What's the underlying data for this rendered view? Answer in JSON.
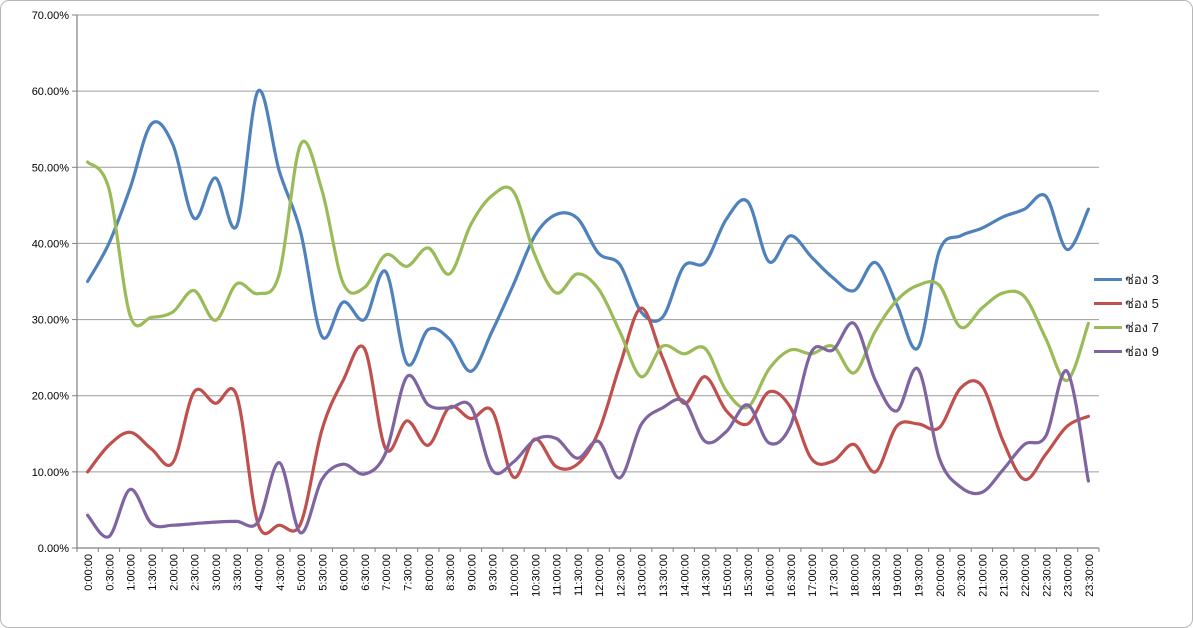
{
  "chart_data": {
    "type": "line",
    "title": "",
    "xlabel": "",
    "ylabel": "",
    "smoothed": true,
    "grid": "horizontal",
    "legend_position": "right",
    "ylim": [
      0,
      70
    ],
    "y_step": 10,
    "y_tick_labels": [
      "0.00%",
      "10.00%",
      "20.00%",
      "30.00%",
      "40.00%",
      "50.00%",
      "60.00%",
      "70.00%"
    ],
    "categories": [
      "0:00:00",
      "0:30:00",
      "1:00:00",
      "1:30:00",
      "2:00:00",
      "2:30:00",
      "3:00:00",
      "3:30:00",
      "4:00:00",
      "4:30:00",
      "5:00:00",
      "5:30:00",
      "6:00:00",
      "6:30:00",
      "7:00:00",
      "7:30:00",
      "8:00:00",
      "8:30:00",
      "9:00:00",
      "9:30:00",
      "10:00:00",
      "10:30:00",
      "11:00:00",
      "11:30:00",
      "12:00:00",
      "12:30:00",
      "13:00:00",
      "13:30:00",
      "14:00:00",
      "14:30:00",
      "15:00:00",
      "15:30:00",
      "16:00:00",
      "16:30:00",
      "17:00:00",
      "17:30:00",
      "18:00:00",
      "18:30:00",
      "19:00:00",
      "19:30:00",
      "20:00:00",
      "20:30:00",
      "21:00:00",
      "21:30:00",
      "22:00:00",
      "22:30:00",
      "23:00:00",
      "23:30:00"
    ],
    "series": [
      {
        "name": "ช่อง 3",
        "color": "#4F81BD",
        "values": [
          35,
          40,
          47.3,
          55.7,
          53,
          43.3,
          48.6,
          42.3,
          60,
          49.5,
          41.5,
          27.8,
          32.3,
          30,
          36.3,
          24.2,
          28.7,
          27.4,
          23.2,
          28.5,
          34.6,
          41,
          43.8,
          43.3,
          38.7,
          37.2,
          31,
          30.3,
          37,
          37.5,
          43.2,
          45.5,
          37.6,
          41,
          38.2,
          35.5,
          33.8,
          37.5,
          32,
          26.3,
          39,
          41,
          42,
          43.5,
          44.5,
          46.2,
          39.2,
          44.5
        ]
      },
      {
        "name": "ช่อง 5",
        "color": "#C0504D",
        "values": [
          10,
          13.5,
          15.2,
          13,
          11.2,
          20.5,
          19,
          20,
          3.2,
          3,
          3.2,
          15.5,
          22,
          26.2,
          13,
          16.7,
          13.5,
          18.5,
          17,
          18,
          9.3,
          14.3,
          10.7,
          11,
          15.3,
          24,
          31.5,
          25,
          19,
          22.5,
          18,
          16.3,
          20.5,
          18.5,
          11.7,
          11.4,
          13.6,
          10,
          16,
          16.3,
          15.8,
          21,
          21.3,
          14,
          9,
          12.3,
          16,
          17.3
        ]
      },
      {
        "name": "ช่อง 7",
        "color": "#9BBB59",
        "values": [
          50.7,
          47.2,
          30.5,
          30.3,
          31,
          33.8,
          29.9,
          34.7,
          33.4,
          36,
          53,
          47,
          34.8,
          34.2,
          38.5,
          37,
          39.4,
          36,
          42.5,
          46.3,
          46.8,
          38.5,
          33.5,
          36,
          34,
          28.4,
          22.5,
          26.5,
          25.5,
          26.2,
          20.6,
          18.5,
          23.5,
          26,
          25.5,
          26.5,
          23,
          28.5,
          32.5,
          34.5,
          34.5,
          29,
          31.5,
          33.5,
          33,
          27.5,
          22,
          29.5
        ]
      },
      {
        "name": "ช่อง 9",
        "color": "#8064A2",
        "values": [
          4.3,
          1.5,
          7.7,
          3.2,
          3,
          3.2,
          3.4,
          3.5,
          3.4,
          11.2,
          2,
          9,
          11,
          9.7,
          12.5,
          22.5,
          18.8,
          18.4,
          18.6,
          10.2,
          11.3,
          14.2,
          14.4,
          11.8,
          14,
          9.2,
          16.2,
          18.4,
          19.3,
          14,
          15.3,
          18.8,
          13.8,
          16,
          25.8,
          26,
          29.5,
          22,
          18,
          23.5,
          11.8,
          8,
          7.3,
          10.3,
          13.6,
          14.7,
          23.2,
          8.8
        ]
      }
    ]
  },
  "legend": {
    "items": [
      "ช่อง 3",
      "ช่อง 5",
      "ช่อง 7",
      "ช่อง 9"
    ]
  }
}
